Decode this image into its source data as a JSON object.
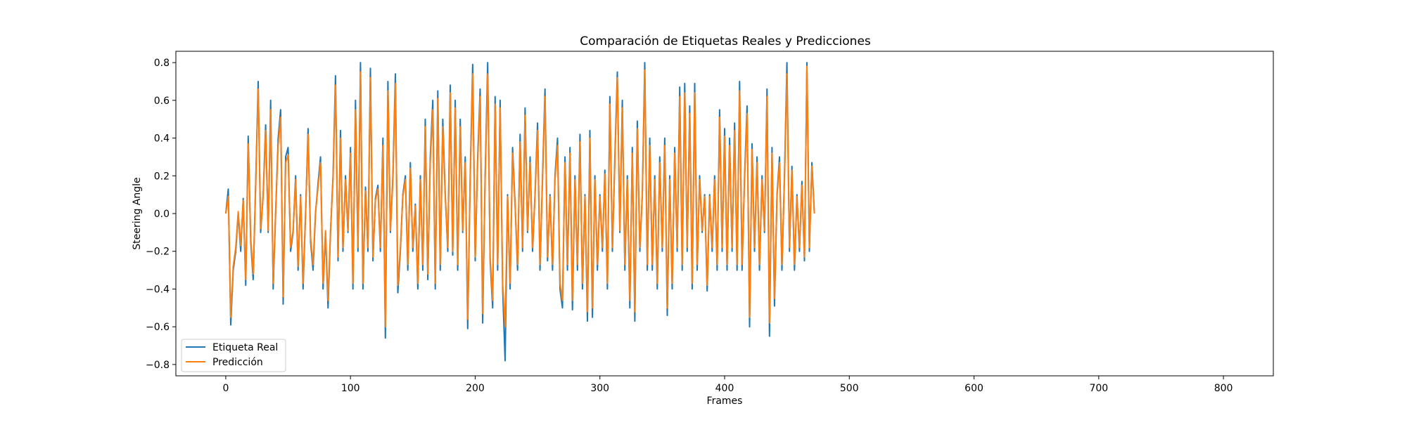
{
  "chart_data": {
    "type": "line",
    "title": "Comparación de Etiquetas Reales y Predicciones",
    "xlabel": "Frames",
    "ylabel": "Steering Angle",
    "xlim": [
      -40,
      840
    ],
    "ylim": [
      -0.86,
      0.86
    ],
    "xticks": [
      0,
      100,
      200,
      300,
      400,
      500,
      600,
      700,
      800
    ],
    "yticks": [
      -0.8,
      -0.6,
      -0.4,
      -0.2,
      0.0,
      0.2,
      0.4,
      0.6,
      0.8
    ],
    "ytick_labels": [
      "−0.8",
      "−0.6",
      "−0.4",
      "−0.2",
      "0.0",
      "0.2",
      "0.4",
      "0.6",
      "0.8"
    ],
    "grid": false,
    "legend_position": "lower-left",
    "series": [
      {
        "name": "Etiqueta Real",
        "color": "#1f77b4",
        "x_step": 2,
        "values": [
          0,
          0.13,
          -0.59,
          -0.3,
          -0.2,
          0,
          -0.2,
          0.08,
          -0.38,
          0.41,
          -0.15,
          -0.35,
          0.17,
          0.7,
          -0.1,
          0.1,
          0.47,
          -0.1,
          0.6,
          -0.4,
          0,
          0.4,
          0.55,
          -0.48,
          0.3,
          0.35,
          -0.2,
          -0.1,
          0.2,
          -0.3,
          0.1,
          -0.4,
          0,
          0.45,
          -0.15,
          -0.3,
          0,
          0.16,
          0.3,
          -0.4,
          -0.1,
          -0.5,
          -0.1,
          0.2,
          0.73,
          -0.25,
          0.44,
          -0.2,
          0.2,
          -0.1,
          0.35,
          -0.4,
          0.6,
          -0.2,
          0.8,
          -0.4,
          0.14,
          -0.2,
          0.77,
          -0.25,
          0.08,
          0.15,
          -0.2,
          0.4,
          -0.66,
          0.7,
          -0.1,
          0.2,
          0.74,
          -0.42,
          -0.2,
          0.1,
          0.2,
          -0.3,
          0.27,
          -0.2,
          0.05,
          -0.4,
          0.2,
          -0.3,
          0.5,
          -0.35,
          0.3,
          0.6,
          -0.4,
          0.65,
          -0.3,
          0.5,
          0.1,
          -0.2,
          0.68,
          -0.22,
          0.6,
          -0.3,
          0.5,
          -0.1,
          0.3,
          -0.61,
          0.2,
          0.79,
          -0.25,
          0.3,
          0.66,
          -0.58,
          0.2,
          0.8,
          -0.25,
          -0.5,
          0.62,
          -0.3,
          0.6,
          -0.4,
          -0.78,
          0.1,
          -0.4,
          0.35,
          0.05,
          -0.3,
          0.42,
          -0.2,
          0.56,
          -0.1,
          0.3,
          -0.2,
          0.1,
          0.48,
          -0.3,
          0.2,
          0.66,
          -0.25,
          0.1,
          -0.3,
          0.2,
          0.4,
          -0.4,
          -0.5,
          0.3,
          -0.3,
          0.35,
          -0.51,
          0.2,
          -0.3,
          0.42,
          -0.4,
          0.1,
          -0.57,
          0.44,
          -0.55,
          0.2,
          -0.3,
          0.1,
          -0.2,
          0.23,
          -0.4,
          0.62,
          -0.2,
          0.3,
          0.75,
          -0.1,
          0.6,
          -0.3,
          0.2,
          -0.5,
          0.35,
          -0.57,
          0.49,
          -0.2,
          0.1,
          0.8,
          -0.3,
          0.4,
          -0.3,
          0.2,
          -0.4,
          0.3,
          -0.2,
          0.4,
          -0.54,
          0.2,
          -0.4,
          0.35,
          -0.2,
          0.67,
          -0.3,
          0.69,
          -0.2,
          0.57,
          -0.4,
          0.69,
          -0.3,
          0.2,
          -0.1,
          0.1,
          -0.41,
          0.1,
          -0.2,
          0.2,
          -0.3,
          0.55,
          -0.2,
          0.45,
          -0.3,
          0.4,
          -0.2,
          0.48,
          -0.3,
          0.7,
          -0.3,
          0.2,
          0.57,
          -0.6,
          0.37,
          -0.2,
          0.3,
          -0.3,
          0.2,
          -0.1,
          0.66,
          -0.65,
          0.35,
          -0.49,
          0.1,
          0.3,
          -0.3,
          0.2,
          0.8,
          -0.2,
          0.25,
          -0.3,
          0.1,
          -0.2,
          0.17,
          -0.25,
          0.8,
          -0.2,
          0.27,
          0
        ]
      },
      {
        "name": "Predicción",
        "color": "#ff7f0e",
        "x_step": 2,
        "values": [
          0,
          0.09,
          -0.55,
          -0.28,
          -0.18,
          0.01,
          -0.17,
          0.07,
          -0.35,
          0.37,
          -0.13,
          -0.32,
          0.15,
          0.66,
          -0.08,
          0.09,
          0.44,
          -0.09,
          0.55,
          -0.37,
          0.01,
          0.36,
          0.51,
          -0.44,
          0.27,
          0.31,
          -0.18,
          -0.09,
          0.18,
          -0.28,
          0.09,
          -0.37,
          0.01,
          0.42,
          -0.13,
          -0.27,
          0.01,
          0.14,
          0.27,
          -0.37,
          -0.09,
          -0.46,
          -0.09,
          0.18,
          0.68,
          -0.23,
          0.4,
          -0.18,
          0.18,
          -0.09,
          0.32,
          -0.37,
          0.55,
          -0.18,
          0.75,
          -0.37,
          0.12,
          -0.18,
          0.72,
          -0.23,
          0.07,
          0.13,
          -0.18,
          0.36,
          -0.6,
          0.65,
          -0.09,
          0.18,
          0.69,
          -0.38,
          -0.18,
          0.09,
          0.18,
          -0.27,
          0.24,
          -0.18,
          0.04,
          -0.37,
          0.18,
          -0.27,
          0.46,
          -0.32,
          0.27,
          0.55,
          -0.37,
          0.61,
          -0.27,
          0.46,
          0.09,
          -0.18,
          0.64,
          -0.2,
          0.56,
          -0.27,
          0.46,
          -0.09,
          0.27,
          -0.56,
          0.18,
          0.74,
          -0.23,
          0.27,
          0.62,
          -0.53,
          0.18,
          0.74,
          -0.23,
          -0.46,
          0.58,
          -0.27,
          0.56,
          -0.37,
          -0.6,
          0.09,
          -0.37,
          0.32,
          0.04,
          -0.27,
          0.38,
          -0.18,
          0.52,
          -0.09,
          0.27,
          -0.18,
          0.09,
          0.44,
          -0.27,
          0.18,
          0.62,
          -0.23,
          0.09,
          -0.27,
          0.18,
          0.36,
          -0.37,
          -0.46,
          0.27,
          -0.27,
          0.32,
          -0.46,
          0.18,
          -0.27,
          0.38,
          -0.37,
          0.09,
          -0.52,
          0.4,
          -0.5,
          0.18,
          -0.27,
          0.09,
          -0.18,
          0.21,
          -0.37,
          0.58,
          -0.18,
          0.27,
          0.72,
          -0.09,
          0.56,
          -0.27,
          0.18,
          -0.46,
          0.32,
          -0.52,
          0.45,
          -0.18,
          0.09,
          0.76,
          -0.27,
          0.36,
          -0.27,
          0.18,
          -0.37,
          0.27,
          -0.18,
          0.36,
          -0.5,
          0.18,
          -0.37,
          0.32,
          -0.18,
          0.62,
          -0.27,
          0.64,
          -0.18,
          0.53,
          -0.37,
          0.64,
          -0.27,
          0.18,
          -0.09,
          0.09,
          -0.38,
          0.09,
          -0.18,
          0.18,
          -0.27,
          0.51,
          -0.18,
          0.41,
          -0.27,
          0.36,
          -0.18,
          0.44,
          -0.27,
          0.65,
          -0.27,
          0.18,
          0.53,
          -0.55,
          0.34,
          -0.18,
          0.27,
          -0.27,
          0.18,
          -0.09,
          0.62,
          -0.58,
          0.32,
          -0.45,
          0.09,
          0.27,
          -0.27,
          0.18,
          0.74,
          -0.18,
          0.23,
          -0.27,
          0.09,
          -0.18,
          0.15,
          -0.23,
          0.78,
          -0.18,
          0.25,
          0
        ]
      }
    ]
  }
}
